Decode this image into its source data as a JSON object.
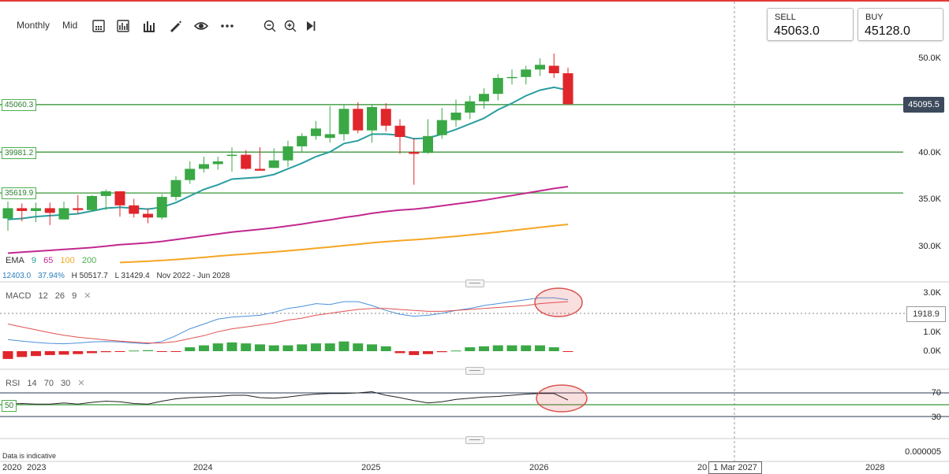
{
  "toolbar": {
    "timeframe": "Monthly",
    "price_type": "Mid",
    "icons": [
      "calculator-icon",
      "indicators-icon",
      "chart-type-icon",
      "draw-icon",
      "eye-icon",
      "more-icon",
      "zoom-out-icon",
      "zoom-in-icon",
      "jump-to-latest-icon"
    ]
  },
  "quote": {
    "sell_label": "SELL",
    "sell_value": "45063.0",
    "buy_label": "BUY",
    "buy_value": "45128.0"
  },
  "levels": {
    "l1": "45060.3",
    "l2": "39981.2",
    "l3": "35619.9",
    "current_price": "45095.5"
  },
  "ema_legend": {
    "name": "EMA",
    "periods": [
      "9",
      "65",
      "100",
      "200"
    ],
    "colors": [
      "#2a9d9f",
      "#c2288f",
      "#f5a623",
      "#4caf50"
    ]
  },
  "stats": {
    "value": "12403.0",
    "pct": "37.94%",
    "high": "H 50517.7",
    "low": "L 31429.4",
    "range": "Nov 2022 - Jun 2028"
  },
  "macd_legend": {
    "name": "MACD",
    "params": [
      "12",
      "26",
      "9"
    ]
  },
  "rsi_legend": {
    "name": "RSI",
    "params": [
      "14",
      "70",
      "30"
    ],
    "midline": "50"
  },
  "price_axis": [
    "50.0K",
    "45.0K",
    "40.0K",
    "35.0K",
    "30.0K"
  ],
  "macd_axis": [
    "3.0K",
    "2.0K",
    "1.0K",
    "0.0K"
  ],
  "macd_hover": "1918.9",
  "rsi_axis": [
    "70",
    "30"
  ],
  "bottom_axis_value": "0.000005",
  "x_axis": [
    "2020",
    "2023",
    "2024",
    "2025",
    "2026",
    "20",
    "2028"
  ],
  "crosshair_date": "1 Mar 2027",
  "disclaimer": "Data is indicative",
  "chart_data": [
    {
      "type": "candlestick",
      "title": "",
      "period": "Monthly",
      "ylim": [
        27000,
        52000
      ],
      "x": [
        "2022-11",
        "2022-12",
        "2023-01",
        "2023-02",
        "2023-03",
        "2023-04",
        "2023-05",
        "2023-06",
        "2023-07",
        "2023-08",
        "2023-09",
        "2023-10",
        "2023-11",
        "2023-12",
        "2024-01",
        "2024-02",
        "2024-03",
        "2024-04",
        "2024-05",
        "2024-06",
        "2024-07",
        "2024-08",
        "2024-09",
        "2024-10",
        "2024-11",
        "2024-12",
        "2025-01",
        "2025-02",
        "2025-03",
        "2025-04",
        "2025-05",
        "2025-06",
        "2025-07",
        "2025-08",
        "2025-09",
        "2025-10",
        "2025-11",
        "2025-12",
        "2026-01",
        "2026-02",
        "2026-03"
      ],
      "open": [
        32900,
        34000,
        33700,
        34000,
        32800,
        34000,
        33800,
        35300,
        35800,
        34300,
        33400,
        33000,
        35200,
        37000,
        38200,
        38700,
        39700,
        39700,
        38200,
        38300,
        39100,
        40600,
        41700,
        41500,
        41900,
        44600,
        42300,
        44600,
        42800,
        40000,
        39900,
        41800,
        43400,
        44200,
        45400,
        46200,
        47900,
        48000,
        48800,
        49200,
        48400
      ],
      "high": [
        34700,
        34500,
        34600,
        34600,
        34700,
        35400,
        35400,
        36000,
        35800,
        35000,
        34000,
        35500,
        37400,
        39000,
        39500,
        39500,
        40500,
        40200,
        40500,
        40400,
        41200,
        42000,
        43300,
        44900,
        45000,
        45300,
        45000,
        45200,
        43500,
        41500,
        43500,
        44700,
        45600,
        46000,
        46800,
        48300,
        48800,
        49200,
        50000,
        50500,
        49000
      ],
      "low": [
        31600,
        32600,
        32500,
        32200,
        32800,
        33400,
        33600,
        33800,
        33100,
        33000,
        32400,
        32800,
        34800,
        36600,
        37800,
        38100,
        37900,
        38100,
        38100,
        38300,
        38400,
        40000,
        41300,
        41000,
        41200,
        42000,
        41000,
        42200,
        39800,
        36500,
        39800,
        41400,
        42700,
        43500,
        44600,
        45500,
        47200,
        47200,
        48100,
        47900,
        45000
      ],
      "close": [
        34000,
        33700,
        34000,
        33500,
        34000,
        33800,
        35300,
        35800,
        34300,
        33400,
        33000,
        35200,
        37000,
        38200,
        38700,
        39000,
        39700,
        38200,
        38000,
        39100,
        40600,
        41700,
        42500,
        41900,
        44600,
        42300,
        44800,
        42800,
        41600,
        39800,
        41700,
        43400,
        44200,
        45400,
        46200,
        47900,
        48000,
        48800,
        49300,
        48400,
        45100
      ]
    },
    {
      "type": "line",
      "title": "",
      "x_range": [
        "2022-11",
        "2026-03"
      ],
      "series": [
        {
          "name": "EMA 9",
          "color": "#2a9d9f",
          "values": [
            32800,
            32900,
            33100,
            33200,
            33300,
            33400,
            33700,
            34000,
            34100,
            34000,
            33900,
            34100,
            34600,
            35300,
            36000,
            36500,
            37100,
            37200,
            37300,
            37600,
            38200,
            38800,
            39500,
            40000,
            40900,
            41200,
            41900,
            41900,
            41800,
            41400,
            41500,
            41900,
            42400,
            43000,
            43600,
            44500,
            45200,
            46000,
            46600,
            46900,
            46600
          ]
        },
        {
          "name": "EMA 65",
          "color": "#c2288f",
          "values": [
            29200,
            29300,
            29400,
            29500,
            29600,
            29700,
            29800,
            29950,
            30100,
            30200,
            30300,
            30450,
            30650,
            30850,
            31050,
            31250,
            31450,
            31600,
            31750,
            31900,
            32100,
            32300,
            32550,
            32750,
            33000,
            33200,
            33450,
            33650,
            33800,
            33900,
            34050,
            34250,
            34450,
            34650,
            34850,
            35100,
            35350,
            35600,
            35850,
            36100,
            36300
          ]
        },
        {
          "name": "EMA 100",
          "color": "#f5a623",
          "values": [
            null,
            null,
            null,
            null,
            null,
            null,
            null,
            null,
            28200,
            28270,
            28340,
            28420,
            28520,
            28630,
            28750,
            28880,
            29000,
            29110,
            29220,
            29330,
            29450,
            29580,
            29720,
            29860,
            30010,
            30150,
            30300,
            30430,
            30540,
            30630,
            30740,
            30870,
            31000,
            31140,
            31290,
            31450,
            31610,
            31780,
            31950,
            32120,
            32270
          ]
        }
      ]
    },
    {
      "type": "bar",
      "title": "",
      "name": "MACD 12 26 9",
      "ylim": [
        -500,
        3200
      ],
      "series": [
        {
          "name": "MACD",
          "color": "#4a90d9",
          "values": [
            600,
            520,
            450,
            400,
            380,
            420,
            480,
            500,
            480,
            420,
            380,
            500,
            800,
            1150,
            1400,
            1650,
            1750,
            1800,
            1850,
            2000,
            2200,
            2300,
            2450,
            2400,
            2550,
            2550,
            2350,
            2100,
            1900,
            1800,
            1850,
            1950,
            2100,
            2200,
            2350,
            2450,
            2550,
            2650,
            2750,
            2750,
            2650
          ]
        },
        {
          "name": "Signal",
          "color": "#e05050",
          "values": [
            1400,
            1250,
            1100,
            950,
            820,
            720,
            650,
            580,
            520,
            470,
            420,
            420,
            500,
            650,
            800,
            1000,
            1150,
            1250,
            1350,
            1450,
            1600,
            1700,
            1850,
            1950,
            2050,
            2150,
            2200,
            2200,
            2150,
            2100,
            2050,
            2050,
            2100,
            2150,
            2200,
            2250,
            2300,
            2350,
            2450,
            2500,
            2550
          ]
        },
        {
          "name": "Histogram",
          "values": [
            -400,
            -300,
            -250,
            -200,
            -180,
            -150,
            -100,
            -50,
            -30,
            30,
            50,
            -30,
            -40,
            200,
            300,
            400,
            450,
            400,
            350,
            300,
            300,
            350,
            400,
            400,
            500,
            400,
            350,
            250,
            -100,
            -200,
            -150,
            -50,
            30,
            200,
            250,
            300,
            300,
            300,
            300,
            200,
            -20
          ]
        }
      ]
    },
    {
      "type": "line",
      "title": "",
      "name": "RSI 14 70 30",
      "ylim": [
        25,
        75
      ],
      "levels": [
        70,
        50,
        30
      ],
      "series": [
        {
          "name": "RSI",
          "color": "#222222",
          "values": [
            51,
            52,
            51,
            51,
            53,
            51,
            54,
            56,
            55,
            52,
            51,
            56,
            60,
            62,
            63,
            64,
            66,
            66,
            62,
            61,
            63,
            66,
            68,
            69,
            69,
            70,
            72,
            66,
            62,
            57,
            53,
            55,
            59,
            61,
            63,
            64,
            66,
            68,
            69,
            69,
            58
          ]
        }
      ]
    }
  ]
}
